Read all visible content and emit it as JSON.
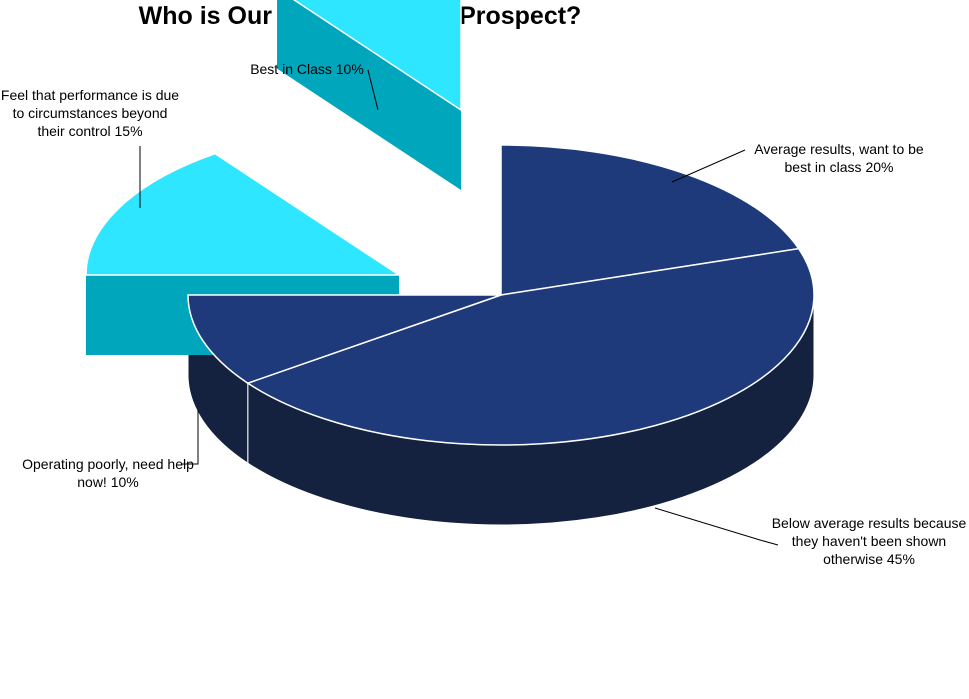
{
  "chart_data": {
    "type": "pie",
    "title": "Who is Our Average Client/Prospect?",
    "style": "3d-exploded",
    "slices": [
      {
        "label": "Average results, want to be best in class",
        "value": 20,
        "value_label": "20%",
        "color": "#1F3A7A",
        "label_text": "Average results, want to be best in class 20%"
      },
      {
        "label": "Below average results because they haven't been shown otherwise",
        "value": 45,
        "value_label": "45%",
        "color": "#1F3A7A",
        "label_text": "Below average results because they haven't been shown otherwise 45%"
      },
      {
        "label": "Operating poorly, need help now!",
        "value": 10,
        "value_label": "10%",
        "color": "#1F3A7A",
        "label_text": "Operating poorly, need help now! 10%"
      },
      {
        "label": "Feel that performance is due to circumstances beyond their control",
        "value": 15,
        "value_label": "15%",
        "color": "#2EE6FF",
        "label_text": "Feel that performance is due to circumstances beyond their control 15%"
      },
      {
        "label": "Best in Class",
        "value": 10,
        "value_label": "10%",
        "color": "#2EE6FF",
        "label_text": "Best in Class 10%"
      }
    ],
    "side_colors": {
      "#1F3A7A": "#14213F",
      "#2EE6FF": "#00A6BC"
    }
  }
}
